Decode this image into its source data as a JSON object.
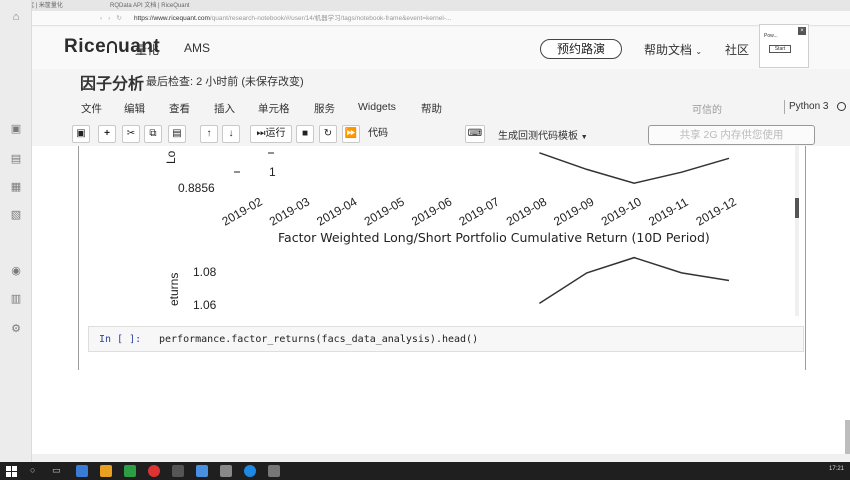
{
  "browser": {
    "tabs": [
      {
        "label": "投资研究 | 米筐量化"
      },
      {
        "label": "RQData API 文档 | RiceQuant"
      }
    ],
    "url_host": "https://www.ricequant.com",
    "url_path": "/quant/research-notebook/#/user/14/机器学习/tags/notebook-frame&event=kernel-..."
  },
  "site": {
    "logo": "RiceQuant",
    "logo_parts": [
      "Rice",
      "uant"
    ],
    "nav": [
      "量化",
      "AMS"
    ],
    "demo_button": "预约路演",
    "help": "帮助文档",
    "community": "社区",
    "widget": {
      "label": "Pow...",
      "button": "Start"
    }
  },
  "notebook": {
    "title": "因子分析",
    "checkpoint": "最后检查: 2 小时前   (未保存改变)",
    "menus": [
      "文件",
      "编辑",
      "查看",
      "插入",
      "单元格",
      "服务",
      "Widgets",
      "帮助"
    ],
    "trusted": "可信的",
    "kernel": "Python 3",
    "toolbar": {
      "run": "运行",
      "cell_type": "代码",
      "template": "生成回测代码模板",
      "memory_notice": "共享 2G 内存供您使用"
    },
    "input_cell": {
      "prompt": "In  [  ]:",
      "code": "performance.factor_returns(facs_data_analysis).head()"
    }
  },
  "chart_data": [
    {
      "type": "line",
      "title": "",
      "ylabel": "Lo",
      "yticks": [
        "0.8856",
        "1"
      ],
      "x": [
        "2019-02",
        "2019-03",
        "2019-04",
        "2019-05",
        "2019-06",
        "2019-07",
        "2019-08",
        "2019-09",
        "2019-10",
        "2019-11",
        "2019-12"
      ],
      "series": [
        {
          "values": [
            null,
            null,
            null,
            null,
            null,
            null,
            1.0,
            0.94,
            0.89,
            0.93,
            0.98
          ]
        }
      ]
    },
    {
      "type": "line",
      "title": "Factor Weighted Long/Short Portfolio Cumulative Return (10D Period)",
      "ylabel": "eturns",
      "yticks": [
        "1.08",
        "1.06"
      ],
      "x": [
        "2019-02",
        "2019-03",
        "2019-04",
        "2019-05",
        "2019-06",
        "2019-07",
        "2019-08",
        "2019-09",
        "2019-10",
        "2019-11",
        "2019-12"
      ],
      "series": [
        {
          "values": [
            null,
            null,
            null,
            null,
            null,
            null,
            1.06,
            1.08,
            1.09,
            1.08,
            1.075
          ]
        }
      ]
    }
  ],
  "taskbar": {
    "time": "17:21"
  }
}
